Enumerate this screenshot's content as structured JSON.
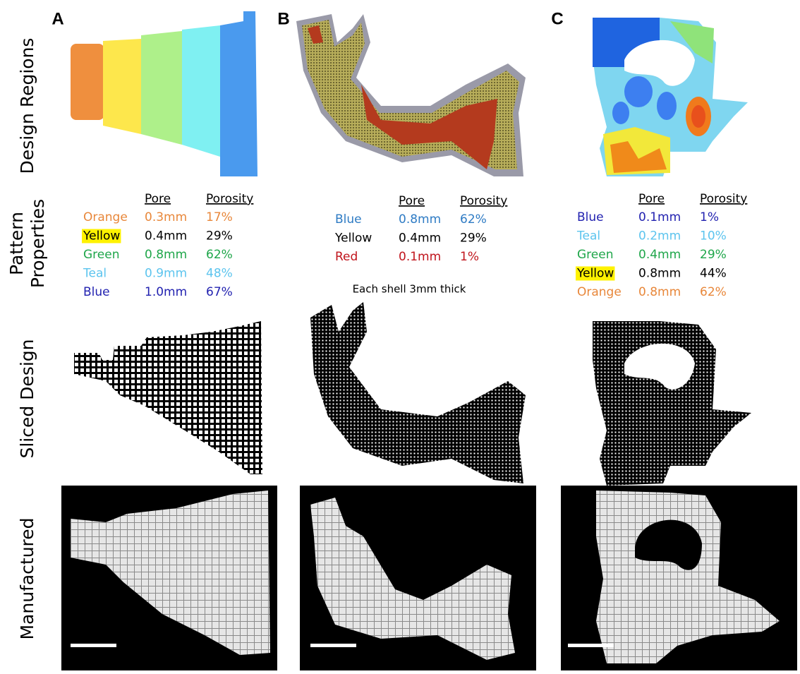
{
  "row_labels": [
    [
      "Design Regions"
    ],
    [
      "Pattern",
      "Properties"
    ],
    [
      "Sliced Design"
    ],
    [
      "Manufactured"
    ]
  ],
  "panels": [
    {
      "letter": "A",
      "table": {
        "headers": [
          "Pore",
          "Porosity"
        ],
        "rows": [
          {
            "name": "Orange",
            "pore": "0.3mm",
            "porosity": "17%",
            "color": "#e8873a"
          },
          {
            "name": "Yellow",
            "pore": "0.4mm",
            "porosity": "29%",
            "color": "#000000",
            "highlight": "#fff200"
          },
          {
            "name": "Green",
            "pore": "0.8mm",
            "porosity": "62%",
            "color": "#1fa64a"
          },
          {
            "name": "Teal",
            "pore": "0.9mm",
            "porosity": "48%",
            "color": "#5cc4ee"
          },
          {
            "name": "Blue",
            "pore": "1.0mm",
            "porosity": "67%",
            "color": "#2222b0"
          }
        ]
      }
    },
    {
      "letter": "B",
      "table": {
        "headers": [
          "Pore",
          "Porosity"
        ],
        "rows": [
          {
            "name": "Blue",
            "pore": "0.8mm",
            "porosity": "62%",
            "color": "#2e7bc4"
          },
          {
            "name": "Yellow",
            "pore": "0.4mm",
            "porosity": "29%",
            "color": "#000000"
          },
          {
            "name": "Red",
            "pore": "0.1mm",
            "porosity": "1%",
            "color": "#c0141c"
          }
        ]
      },
      "note": "Each shell 3mm thick"
    },
    {
      "letter": "C",
      "table": {
        "headers": [
          "Pore",
          "Porosity"
        ],
        "rows": [
          {
            "name": "Blue",
            "pore": "0.1mm",
            "porosity": "1%",
            "color": "#2222b0"
          },
          {
            "name": "Teal",
            "pore": "0.2mm",
            "porosity": "10%",
            "color": "#5cc4ee"
          },
          {
            "name": "Green",
            "pore": "0.4mm",
            "porosity": "29%",
            "color": "#1fa64a"
          },
          {
            "name": "Yellow",
            "pore": "0.8mm",
            "porosity": "44%",
            "color": "#000000",
            "highlight": "#fff200"
          },
          {
            "name": "Orange",
            "pore": "0.8mm",
            "porosity": "62%",
            "color": "#e8873a"
          }
        ]
      }
    }
  ]
}
